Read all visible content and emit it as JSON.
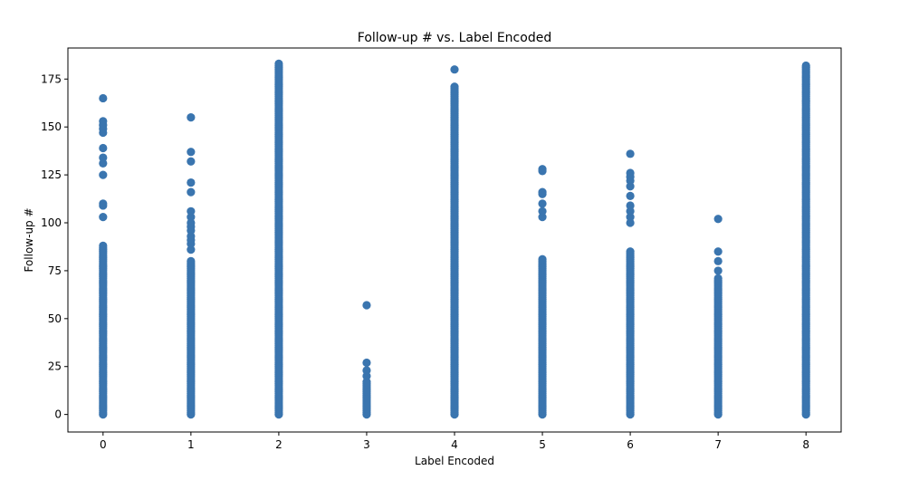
{
  "chart_data": {
    "type": "scatter",
    "title": "Follow-up # vs. Label Encoded",
    "xlabel": "Label Encoded",
    "ylabel": "Follow-up #",
    "xlim": [
      -0.4,
      8.4
    ],
    "ylim": [
      -9.15,
      191.2
    ],
    "x_ticks": [
      0,
      1,
      2,
      3,
      4,
      5,
      6,
      7,
      8
    ],
    "y_ticks": [
      0,
      25,
      50,
      75,
      100,
      125,
      150,
      175
    ],
    "grid": false,
    "marker_color": "#3a75af",
    "series": [
      {
        "x": 0,
        "dense_ranges": [
          [
            0,
            88
          ]
        ],
        "values": [
          103,
          109,
          110,
          125,
          131,
          134,
          139,
          147,
          149,
          151,
          153,
          165
        ]
      },
      {
        "x": 1,
        "dense_ranges": [
          [
            0,
            80
          ]
        ],
        "values": [
          86,
          89,
          91,
          93,
          96,
          98,
          100,
          103,
          106,
          116,
          121,
          132,
          137,
          155
        ]
      },
      {
        "x": 2,
        "dense_ranges": [
          [
            0,
            183
          ]
        ],
        "values": []
      },
      {
        "x": 3,
        "dense_ranges": [
          [
            0,
            17
          ]
        ],
        "values": [
          20,
          23,
          27,
          57
        ]
      },
      {
        "x": 4,
        "dense_ranges": [
          [
            0,
            171
          ]
        ],
        "values": [
          180
        ]
      },
      {
        "x": 5,
        "dense_ranges": [
          [
            0,
            81
          ]
        ],
        "values": [
          103,
          106,
          110,
          115,
          116,
          127,
          128
        ]
      },
      {
        "x": 6,
        "dense_ranges": [
          [
            0,
            85
          ]
        ],
        "values": [
          100,
          103,
          106,
          109,
          114,
          119,
          122,
          124,
          126,
          136
        ]
      },
      {
        "x": 7,
        "dense_ranges": [
          [
            0,
            71
          ]
        ],
        "values": [
          75,
          80,
          85,
          102
        ]
      },
      {
        "x": 8,
        "dense_ranges": [
          [
            0,
            182
          ]
        ],
        "values": []
      }
    ]
  }
}
